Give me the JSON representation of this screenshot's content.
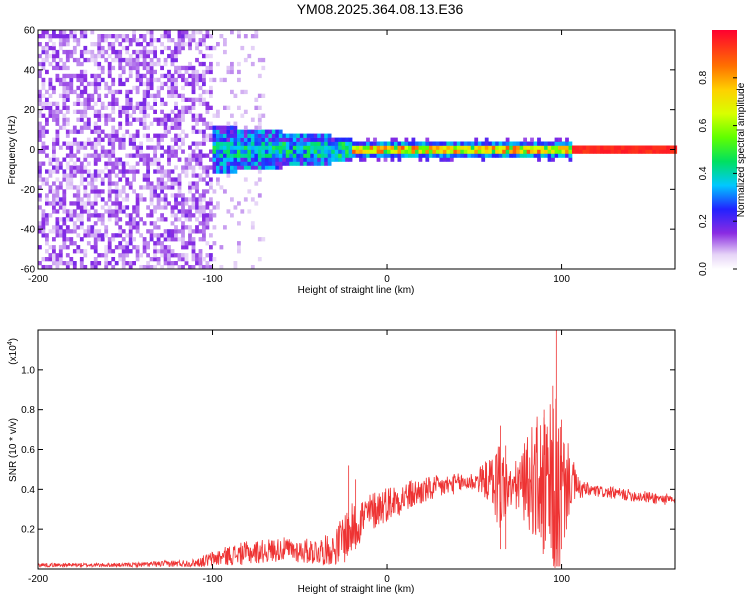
{
  "title": "YM08.2025.364.08.13.E36",
  "chart_data": [
    {
      "type": "heatmap",
      "xlabel": "Height of straight line (km)",
      "ylabel": "Frequency (Hz)",
      "xlim": [
        -200,
        165
      ],
      "ylim": [
        -60,
        60
      ],
      "xticks": [
        "-200",
        "-100",
        "0",
        "100"
      ],
      "yticks": [
        "-60",
        "-40",
        "-20",
        "0",
        "20",
        "40",
        "60"
      ],
      "colorbar": {
        "label": "Normalized spectral amplitude",
        "range": [
          0.0,
          1.0
        ],
        "ticks": [
          "0.0",
          "0.2",
          "0.4",
          "0.6",
          "0.8"
        ],
        "colormap": "rainbow (white-violet-blue-cyan-green-yellow-orange-red)"
      },
      "description_regions": [
        {
          "x": [
            -200,
            -100
          ],
          "freq": [
            -60,
            60
          ],
          "amplitude": "low scattered noise (~0.05-0.15)"
        },
        {
          "x": [
            -100,
            -20
          ],
          "freq": [
            -12,
            12
          ],
          "amplitude": "blob centered at 0 Hz (~0.2-0.45)"
        },
        {
          "x": [
            -20,
            105
          ],
          "freq": [
            -5,
            5
          ],
          "amplitude": "narrow band near 0 Hz (~0.4-0.95)"
        },
        {
          "x": [
            105,
            165
          ],
          "freq": [
            -1,
            1
          ],
          "amplitude": "line at 0 Hz (~0.9-1.0)"
        }
      ]
    },
    {
      "type": "line",
      "xlabel": "Height of straight line (km)",
      "ylabel": "SNR (10 * v/v)",
      "y_scale_label": "(x10",
      "y_scale_exp": "4",
      "xlim": [
        -200,
        165
      ],
      "ylim": [
        0.0,
        1.2
      ],
      "xticks": [
        "-200",
        "-100",
        "0",
        "100"
      ],
      "yticks": [
        "0.2",
        "0.4",
        "0.6",
        "0.8",
        "1.0"
      ],
      "series": [
        {
          "color": "#ee3333",
          "x": [
            -200,
            -150,
            -110,
            -100,
            -90,
            -80,
            -60,
            -50,
            -40,
            -30,
            -25,
            -20,
            -15,
            -10,
            -5,
            0,
            10,
            20,
            30,
            40,
            50,
            55,
            60,
            65,
            70,
            75,
            80,
            85,
            90,
            95,
            98,
            100,
            105,
            110,
            120,
            130,
            140,
            150,
            160,
            165
          ],
          "y": [
            0.02,
            0.02,
            0.03,
            0.05,
            0.07,
            0.08,
            0.1,
            0.09,
            0.09,
            0.1,
            0.16,
            0.2,
            0.25,
            0.28,
            0.31,
            0.33,
            0.36,
            0.39,
            0.41,
            0.43,
            0.44,
            0.45,
            0.44,
            0.42,
            0.4,
            0.42,
            0.44,
            0.45,
            0.4,
            0.35,
            0.3,
            0.38,
            0.45,
            0.4,
            0.39,
            0.38,
            0.37,
            0.36,
            0.35,
            0.34
          ],
          "noise": [
            0.01,
            0.01,
            0.02,
            0.04,
            0.05,
            0.06,
            0.06,
            0.06,
            0.07,
            0.08,
            0.14,
            0.13,
            0.12,
            0.1,
            0.1,
            0.09,
            0.08,
            0.07,
            0.06,
            0.05,
            0.05,
            0.08,
            0.13,
            0.26,
            0.1,
            0.14,
            0.22,
            0.32,
            0.38,
            0.5,
            0.6,
            0.35,
            0.15,
            0.05,
            0.03,
            0.03,
            0.03,
            0.03,
            0.03,
            0.03
          ]
        }
      ]
    }
  ]
}
